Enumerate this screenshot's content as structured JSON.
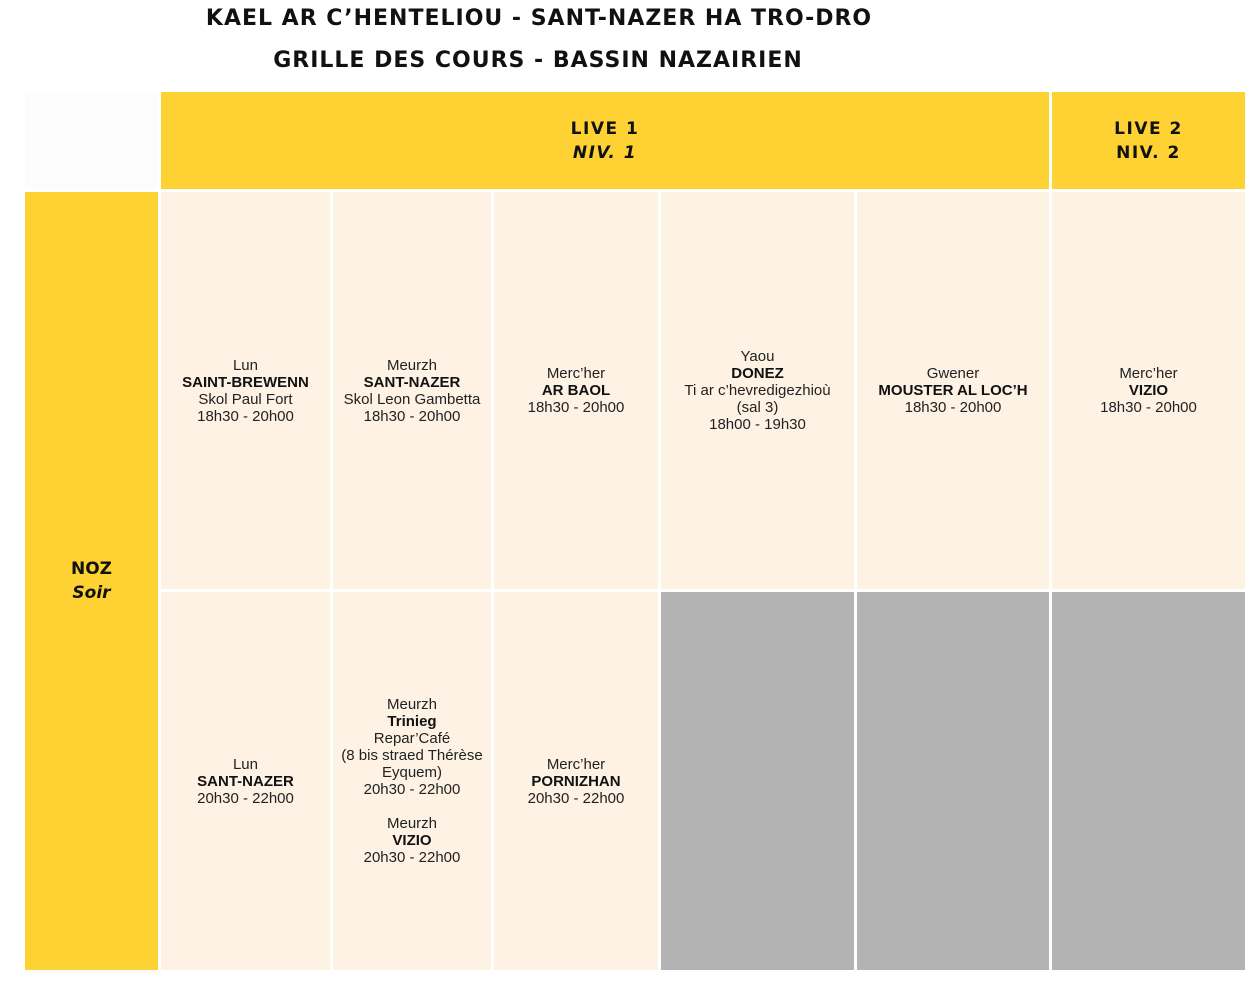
{
  "title_line1": "KAEL AR C’HENTELIOU - SANT-NAZER HA TRO-DRO",
  "title_line2": "GRILLE DES COURS - BASSIN NAZAIRIEN",
  "headers": {
    "level1": {
      "line1": "LIVE 1",
      "line2": "NIV. 1"
    },
    "level2": {
      "line1": "LIVE 2",
      "line2": "NIV. 2"
    }
  },
  "row_label": {
    "line1": "NOZ",
    "line2": "Soir"
  },
  "row1": {
    "c1": {
      "day": "Lun",
      "place": "SAINT-BREWENN",
      "venue": "Skol Paul Fort",
      "time": "18h30 - 20h00"
    },
    "c2": {
      "day": "Meurzh",
      "place": "SANT-NAZER",
      "venue": "Skol Leon Gambetta",
      "time": "18h30 - 20h00"
    },
    "c3": {
      "day": "Merc’her",
      "place": "AR BAOL",
      "time": "18h30 - 20h00"
    },
    "c4": {
      "day": "Yaou",
      "place": "DONEZ",
      "venue": "Ti ar c’hevredigezhioù",
      "room": "(sal 3)",
      "time": "18h00 - 19h30"
    },
    "c5": {
      "day": "Gwener",
      "place": "MOUSTER AL LOC’H",
      "time": "18h30 - 20h00"
    },
    "c6": {
      "day": "Merc’her",
      "place": "VIZIO",
      "time": "18h30 - 20h00"
    }
  },
  "row2": {
    "c1": {
      "day": "Lun",
      "place": "SANT-NAZER",
      "time": "20h30 - 22h00"
    },
    "c2a": {
      "day": "Meurzh",
      "place": "Trinieg",
      "venue": "Repar’Café",
      "address1": "(8 bis straed Thérèse",
      "address2": "Eyquem)",
      "time": "20h30 - 22h00"
    },
    "c2b": {
      "day": "Meurzh",
      "place": "VIZIO",
      "time": "20h30 - 22h00"
    },
    "c3": {
      "day": "Merc’her",
      "place": "PORNIZHAN",
      "time": "20h30 - 22h00"
    }
  },
  "colors": {
    "yellow": "#fed233",
    "cream": "#fdf2e3",
    "gray": "#b3b3b3"
  }
}
